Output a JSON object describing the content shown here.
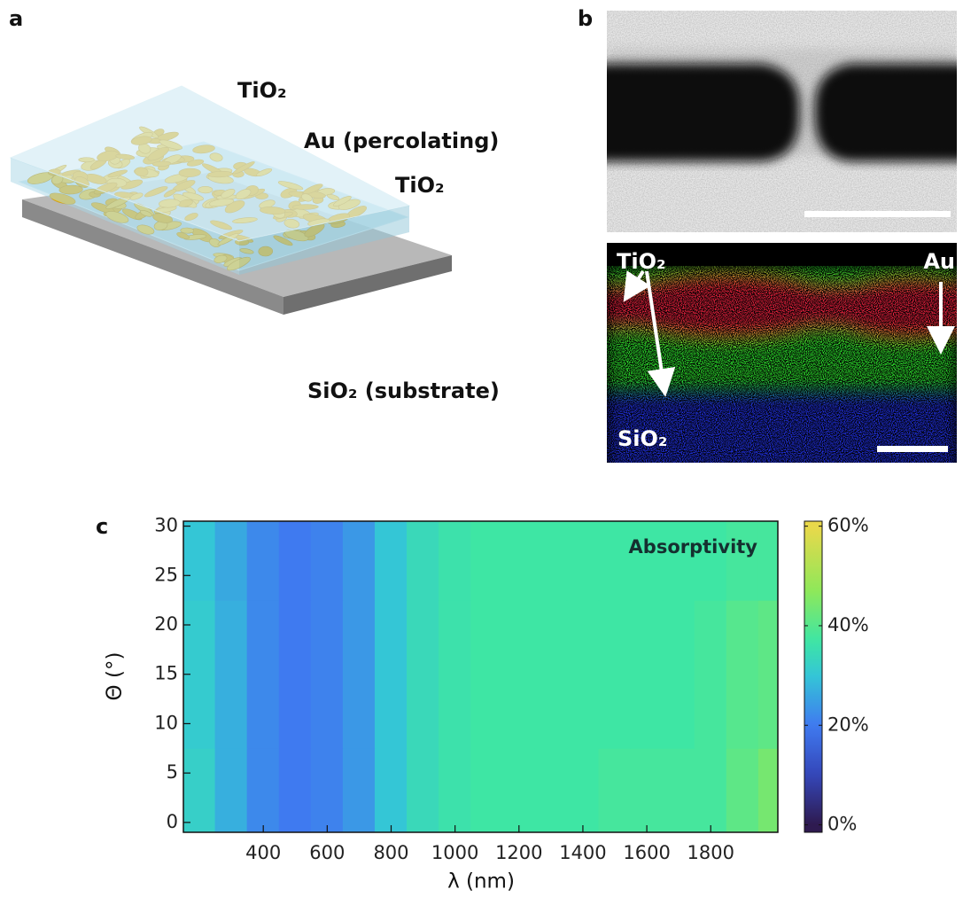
{
  "panels": {
    "a": {
      "label": "a",
      "layers": [
        "TiO₂",
        "Au (percolating)",
        "TiO₂",
        "SiO₂ (substrate)"
      ]
    },
    "b": {
      "label": "b",
      "labels": [
        "TiO₂",
        "Au",
        "SiO₂"
      ]
    }
  },
  "chart_data": {
    "type": "heatmap",
    "label": "c",
    "annotation": "Absorptivity",
    "xlabel": "λ (nm)",
    "ylabel": "Θ (°)",
    "x": [
      200,
      300,
      400,
      500,
      600,
      700,
      800,
      900,
      1000,
      1100,
      1200,
      1300,
      1400,
      1500,
      1600,
      1700,
      1800,
      1900,
      2000
    ],
    "y": [
      0,
      15,
      30
    ],
    "values": [
      [
        32,
        27,
        22,
        20,
        21,
        24,
        30,
        34,
        36,
        37,
        37,
        37,
        37,
        38,
        38,
        38,
        38,
        41,
        44
      ],
      [
        31,
        27,
        22,
        20,
        21,
        24,
        30,
        34,
        36,
        37,
        37,
        37,
        37,
        37,
        37,
        37,
        38,
        40,
        41
      ],
      [
        30,
        26,
        22,
        20,
        21,
        24,
        30,
        34,
        36,
        37,
        37,
        37,
        37,
        37,
        37,
        37,
        37,
        38,
        38
      ]
    ],
    "xlim": [
      150,
      2010
    ],
    "ylim": [
      -1,
      30.5
    ],
    "xticks": [
      400,
      600,
      800,
      1000,
      1200,
      1400,
      1600,
      1800
    ],
    "yticks": [
      0,
      5,
      10,
      15,
      20,
      25,
      30
    ],
    "colorbar": {
      "lim": [
        -1.5,
        61
      ],
      "ticks": [
        {
          "value": 0,
          "label": "0%"
        },
        {
          "value": 20,
          "label": "20%"
        },
        {
          "value": 40,
          "label": "40%"
        },
        {
          "value": 60,
          "label": "60%"
        }
      ],
      "colormap": [
        {
          "value": 0,
          "color": "#2e1a4f"
        },
        {
          "value": 10,
          "color": "#3446b8"
        },
        {
          "value": 20,
          "color": "#3f7af0"
        },
        {
          "value": 30,
          "color": "#34c6d6"
        },
        {
          "value": 37,
          "color": "#3ee6a4"
        },
        {
          "value": 47,
          "color": "#8ee85a"
        },
        {
          "value": 60,
          "color": "#ead84a"
        }
      ]
    }
  }
}
